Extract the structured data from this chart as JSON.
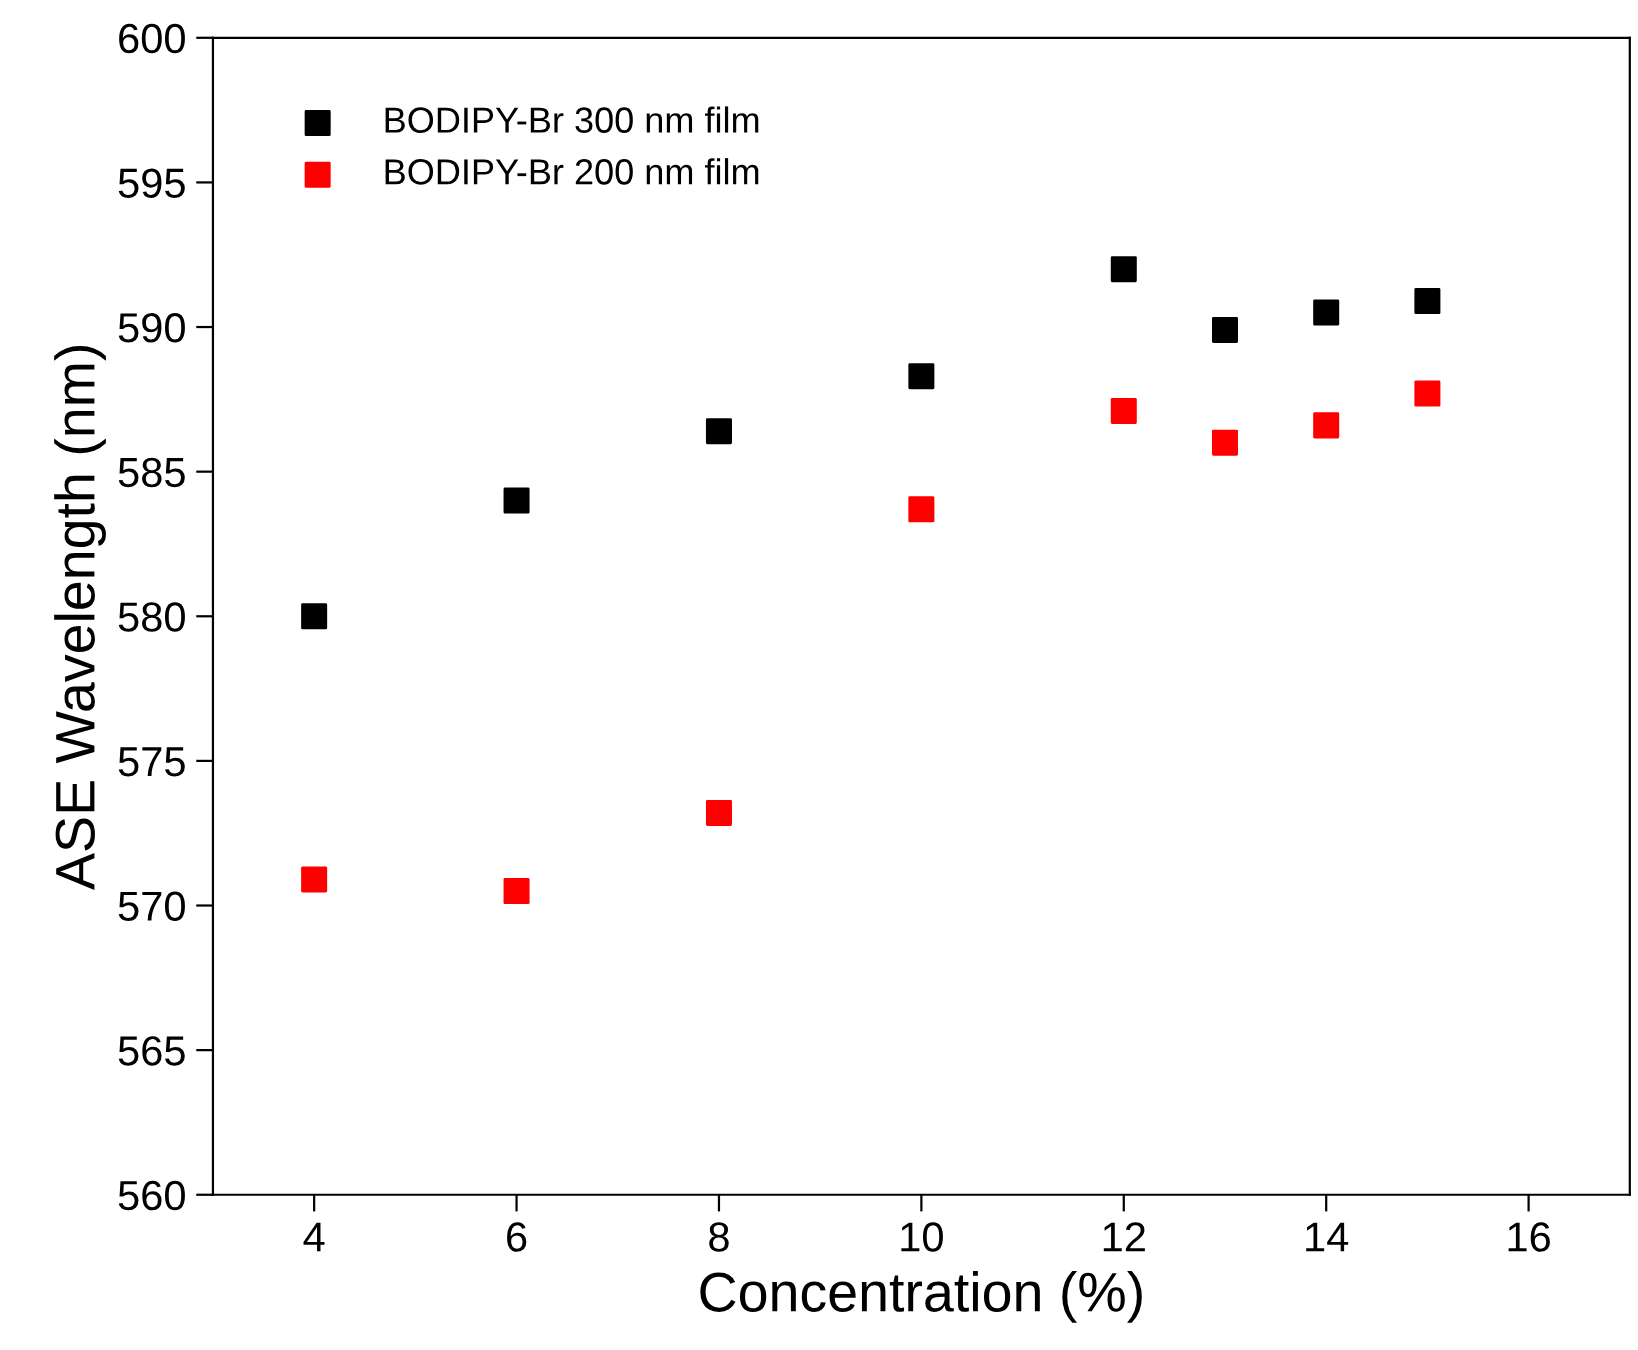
{
  "chart_data": {
    "type": "scatter",
    "xlabel": "Concentration (%)",
    "ylabel": "ASE Wavelength (nm)",
    "xlim": [
      3,
      17
    ],
    "xticks": [
      4,
      6,
      8,
      10,
      12,
      14,
      16
    ],
    "ylim": [
      560,
      600
    ],
    "yticks": [
      560,
      565,
      570,
      575,
      580,
      585,
      590,
      595,
      600
    ],
    "x": [
      4,
      6,
      8,
      10,
      12,
      13,
      14,
      15
    ],
    "marker": "square",
    "legend": "top left",
    "grid": false,
    "series": [
      {
        "name": "BODIPY-Br 300 nm film",
        "color": "#000000",
        "values": [
          580.0,
          584.0,
          586.4,
          588.3,
          592.0,
          589.9,
          590.5,
          590.9
        ]
      },
      {
        "name": "BODIPY-Br 200 nm film",
        "color": "#ff0000",
        "values": [
          570.9,
          570.5,
          573.2,
          583.7,
          587.1,
          586.0,
          586.6,
          587.7
        ]
      }
    ]
  }
}
